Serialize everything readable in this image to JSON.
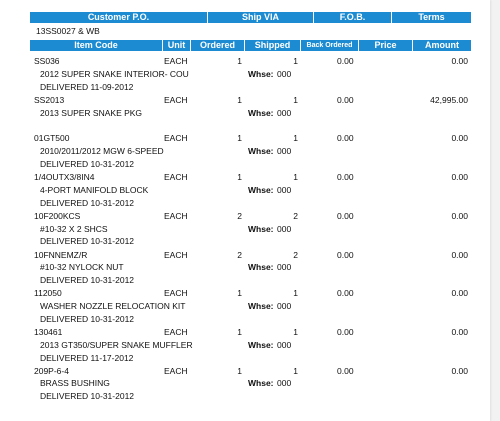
{
  "header": {
    "customer_po_label": "Customer P.O.",
    "ship_via_label": "Ship VIA",
    "fob_label": "F.O.B.",
    "terms_label": "Terms",
    "customer_po_value": "13SS0027 & WB"
  },
  "columns": {
    "item_code": "Item Code",
    "unit": "Unit",
    "ordered": "Ordered",
    "shipped": "Shipped",
    "back_ordered": "Back Ordered",
    "price": "Price",
    "amount": "Amount"
  },
  "whse_label": "Whse:",
  "lines": [
    {
      "code": "SS036",
      "unit": "EACH",
      "ordered": "1",
      "shipped": "1",
      "whse": "000",
      "back_ordered": "0.00",
      "price": "",
      "amount": "0.00",
      "description": "2012 SUPER SNAKE INTERIOR- COU",
      "delivered": "DELIVERED 11-09-2012"
    },
    {
      "code": "SS2013",
      "unit": "EACH",
      "ordered": "1",
      "shipped": "1",
      "whse": "000",
      "back_ordered": "0.00",
      "price": "",
      "amount": "42,995.00",
      "description": "2013 SUPER SNAKE PKG",
      "delivered": ""
    },
    {
      "code": "01GT500",
      "unit": "EACH",
      "ordered": "1",
      "shipped": "1",
      "whse": "000",
      "back_ordered": "0.00",
      "price": "",
      "amount": "0.00",
      "description": "2010/2011/2012 MGW 6-SPEED",
      "delivered": "DELIVERED 10-31-2012"
    },
    {
      "code": "1/4OUTX3/8IN4",
      "unit": "EACH",
      "ordered": "1",
      "shipped": "1",
      "whse": "000",
      "back_ordered": "0.00",
      "price": "",
      "amount": "0.00",
      "description": "4-PORT MANIFOLD BLOCK",
      "delivered": "DELIVERED 10-31-2012"
    },
    {
      "code": "10F200KCS",
      "unit": "EACH",
      "ordered": "2",
      "shipped": "2",
      "whse": "000",
      "back_ordered": "0.00",
      "price": "",
      "amount": "0.00",
      "description": "#10-32 X 2 SHCS",
      "delivered": "DELIVERED 10-31-2012"
    },
    {
      "code": "10FNNEMZ/R",
      "unit": "EACH",
      "ordered": "2",
      "shipped": "2",
      "whse": "000",
      "back_ordered": "0.00",
      "price": "",
      "amount": "0.00",
      "description": "#10-32 NYLOCK NUT",
      "delivered": "DELIVERED 10-31-2012"
    },
    {
      "code": "112050",
      "unit": "EACH",
      "ordered": "1",
      "shipped": "1",
      "whse": "000",
      "back_ordered": "0.00",
      "price": "",
      "amount": "0.00",
      "description": "WASHER NOZZLE RELOCATION KIT",
      "delivered": "DELIVERED 10-31-2012"
    },
    {
      "code": "130461",
      "unit": "EACH",
      "ordered": "1",
      "shipped": "1",
      "whse": "000",
      "back_ordered": "0.00",
      "price": "",
      "amount": "0.00",
      "description": "2013 GT350/SUPER SNAKE MUFFLER",
      "delivered": "DELIVERED 11-17-2012"
    },
    {
      "code": "209P-6-4",
      "unit": "EACH",
      "ordered": "1",
      "shipped": "1",
      "whse": "000",
      "back_ordered": "0.00",
      "price": "",
      "amount": "0.00",
      "description": "BRASS BUSHING",
      "delivered": "DELIVERED 10-31-2012"
    }
  ],
  "colors": {
    "header_bg": "#1c8bd2",
    "header_text": "#ffffff",
    "page_bg": "#ffffff",
    "outer_bg": "#f2f2f2"
  }
}
